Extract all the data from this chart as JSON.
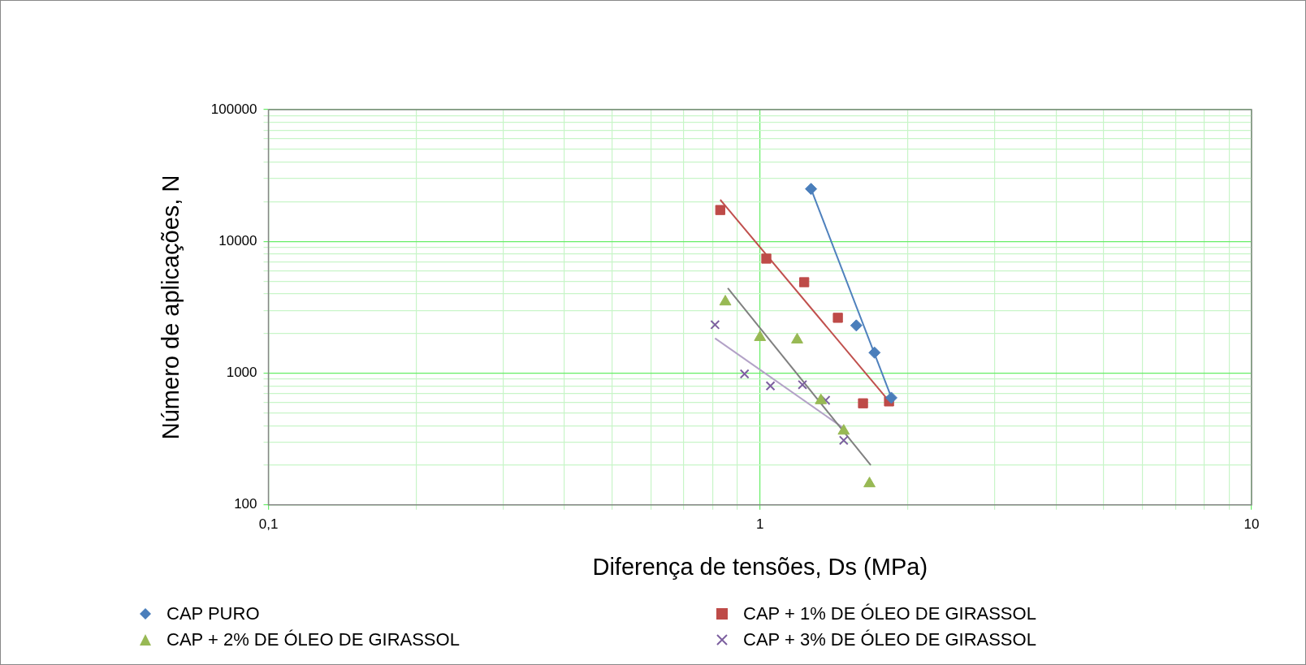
{
  "chart_data": {
    "type": "scatter",
    "xlabel": "Diferença de tensões, Ds (MPa)",
    "ylabel": "Número de aplicações, N",
    "log": "xy",
    "grid": true,
    "legend": "bottom",
    "xlim": [
      0.1,
      10
    ],
    "xticks": [
      {
        "value": 0.1,
        "label": "0,1"
      },
      {
        "value": 0.2,
        "label": null
      },
      {
        "value": 0.3,
        "label": null
      },
      {
        "value": 0.4,
        "label": null
      },
      {
        "value": 0.5,
        "label": null
      },
      {
        "value": 0.6,
        "label": null
      },
      {
        "value": 0.7,
        "label": null
      },
      {
        "value": 0.8,
        "label": null
      },
      {
        "value": 0.9,
        "label": null
      },
      1,
      {
        "value": 2,
        "label": null
      },
      {
        "value": 3,
        "label": null
      },
      {
        "value": 4,
        "label": null
      },
      {
        "value": 5,
        "label": null
      },
      {
        "value": 6,
        "label": null
      },
      {
        "value": 7,
        "label": null
      },
      {
        "value": 8,
        "label": null
      },
      {
        "value": 9,
        "label": null
      },
      10
    ],
    "ylim": [
      100,
      100000
    ],
    "yticks": [
      100,
      {
        "value": 200,
        "label": null
      },
      {
        "value": 300,
        "label": null
      },
      {
        "value": 400,
        "label": null
      },
      {
        "value": 500,
        "label": null
      },
      {
        "value": 600,
        "label": null
      },
      {
        "value": 700,
        "label": null
      },
      {
        "value": 800,
        "label": null
      },
      {
        "value": 900,
        "label": null
      },
      1000,
      {
        "value": 2000,
        "label": null
      },
      {
        "value": 3000,
        "label": null
      },
      {
        "value": 4000,
        "label": null
      },
      {
        "value": 5000,
        "label": null
      },
      {
        "value": 6000,
        "label": null
      },
      {
        "value": 7000,
        "label": null
      },
      {
        "value": 8000,
        "label": null
      },
      {
        "value": 9000,
        "label": null
      },
      10000,
      {
        "value": 20000,
        "label": null
      },
      {
        "value": 30000,
        "label": null
      },
      {
        "value": 40000,
        "label": null
      },
      {
        "value": 50000,
        "label": null
      },
      {
        "value": 60000,
        "label": null
      },
      {
        "value": 70000,
        "label": null
      },
      {
        "value": 80000,
        "label": null
      },
      {
        "value": 90000,
        "label": null
      },
      100000
    ],
    "series": [
      {
        "name": "CAP PURO",
        "color": "#4a7ebb",
        "marker": "diamond",
        "x": [
          1.27,
          1.57,
          1.71,
          1.85
        ],
        "values": [
          25000,
          2300,
          1430,
          650
        ]
      },
      {
        "name": "CAP + 1% DE ÓLEO DE GIRASSOL",
        "color": "#be4b48",
        "marker": "square",
        "x": [
          0.83,
          1.03,
          1.23,
          1.44,
          1.62,
          1.83
        ],
        "values": [
          17300,
          7400,
          4900,
          2630,
          590,
          610
        ]
      },
      {
        "name": "CAP + 2% DE ÓLEO DE GIRASSOL",
        "color": "#98b954",
        "marker": "triangle",
        "x": [
          0.85,
          1.0,
          1.19,
          1.33,
          1.48,
          1.67
        ],
        "values": [
          3480,
          1870,
          1790,
          620,
          364,
          145
        ]
      },
      {
        "name": "CAP + 3% DE ÓLEO DE GIRASSOL",
        "color": "#7d60a0",
        "marker": "cross",
        "x": [
          0.81,
          0.93,
          1.05,
          1.22,
          1.36,
          1.48
        ],
        "values": [
          2330,
          986,
          800,
          816,
          622,
          309
        ]
      },
      {
        "type": "line",
        "color": "#4f81bd",
        "x": [
          1.27,
          1.86
        ],
        "values": [
          25000,
          620
        ]
      },
      {
        "type": "line",
        "color": "#c0504d",
        "x": [
          0.83,
          1.8
        ],
        "values": [
          20700,
          660
        ]
      },
      {
        "type": "line",
        "color": "#808080",
        "x": [
          0.86,
          1.68
        ],
        "values": [
          4420,
          200
        ]
      },
      {
        "type": "line",
        "color": "#b3a2c7",
        "x": [
          0.81,
          1.49
        ],
        "values": [
          1840,
          375
        ]
      }
    ]
  }
}
